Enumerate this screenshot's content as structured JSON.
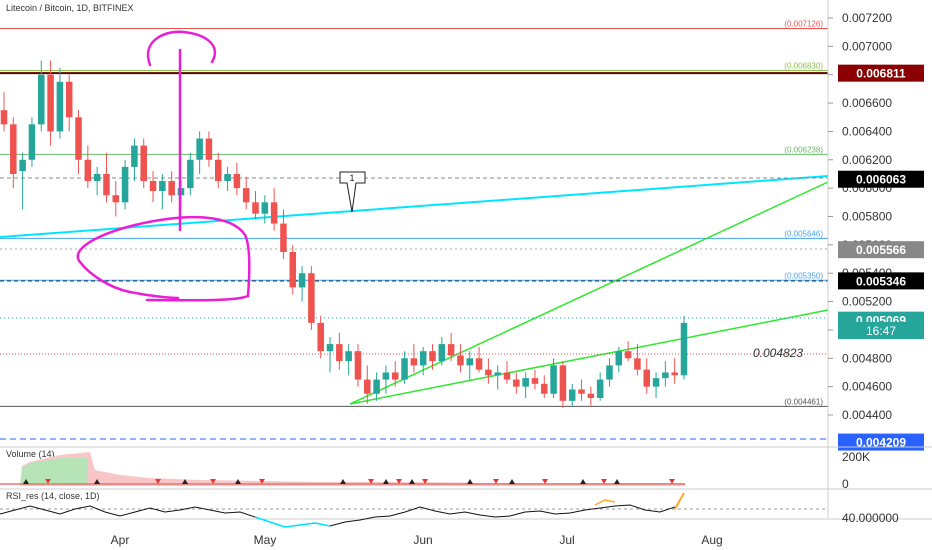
{
  "header": {
    "symbol_title": "Litecoin / Bitcoin, 1D, BITFINEX"
  },
  "chart_data": {
    "type": "candlestick",
    "title": "Litecoin / Bitcoin, 1D, BITFINEX",
    "x_ticks": [
      "Apr",
      "May",
      "Jun",
      "Jul",
      "Aug"
    ],
    "y_ticks": [
      "0.007200",
      "0.007000",
      "0.006800",
      "0.006600",
      "0.006400",
      "0.006200",
      "0.006000",
      "0.005800",
      "0.005600",
      "0.005400",
      "0.005200",
      "0.005000",
      "0.004800",
      "0.004600",
      "0.004400"
    ],
    "ylim": [
      0.00425,
      0.0073
    ],
    "grid": false,
    "horizontal_levels": [
      {
        "label": "0.007126",
        "value": 0.007126,
        "color": "#ef5350",
        "style": "solid"
      },
      {
        "label": "0.006830",
        "value": 0.00683,
        "color": "#8bc34a",
        "style": "solid"
      },
      {
        "label": "0.006238",
        "value": 0.006238,
        "color": "#66bb6a",
        "style": "solid"
      },
      {
        "label": "0.005646",
        "value": 0.005646,
        "color": "#42a5f5",
        "style": "solid"
      },
      {
        "label": "0.005350",
        "value": 0.00535,
        "color": "#42a5f5",
        "style": "solid"
      },
      {
        "label": "0.004461",
        "value": 0.004461,
        "color": "#555555",
        "style": "solid"
      }
    ],
    "price_badges": [
      {
        "label": "0.006811",
        "value": 0.006811,
        "bg": "#8b0000"
      },
      {
        "label": "0.006063",
        "value": 0.006063,
        "bg": "#000000"
      },
      {
        "label": "0.005566",
        "value": 0.005566,
        "bg": "#888888"
      },
      {
        "label": "0.005346",
        "value": 0.005346,
        "bg": "#000000"
      },
      {
        "label": "0.005069",
        "value": 0.005069,
        "bg": "#26a69a"
      },
      {
        "label": "0.004209",
        "value": 0.004209,
        "bg": "#2962ff"
      }
    ],
    "countdown_label": "16:47",
    "annotation_value": "0.004823",
    "callout_label": "1",
    "candles": [
      [
        0.00655,
        0.00668,
        0.0064,
        0.00645
      ],
      [
        0.00645,
        0.0065,
        0.006,
        0.0061
      ],
      [
        0.00612,
        0.00625,
        0.00585,
        0.0062
      ],
      [
        0.0062,
        0.0065,
        0.00615,
        0.00645
      ],
      [
        0.00645,
        0.0069,
        0.0064,
        0.0068
      ],
      [
        0.0068,
        0.0069,
        0.0063,
        0.0064
      ],
      [
        0.0064,
        0.00685,
        0.00635,
        0.00675
      ],
      [
        0.00675,
        0.0068,
        0.0064,
        0.0065
      ],
      [
        0.0065,
        0.00655,
        0.0061,
        0.0062
      ],
      [
        0.0062,
        0.0063,
        0.006,
        0.00605
      ],
      [
        0.00605,
        0.00615,
        0.00595,
        0.0061
      ],
      [
        0.0061,
        0.00625,
        0.0059,
        0.00595
      ],
      [
        0.00595,
        0.00605,
        0.0058,
        0.0059
      ],
      [
        0.0059,
        0.0062,
        0.00585,
        0.00615
      ],
      [
        0.00615,
        0.00635,
        0.00605,
        0.0063
      ],
      [
        0.0063,
        0.00635,
        0.006,
        0.00605
      ],
      [
        0.00605,
        0.00612,
        0.0059,
        0.00598
      ],
      [
        0.00598,
        0.0061,
        0.00585,
        0.00605
      ],
      [
        0.00605,
        0.00612,
        0.0059,
        0.00595
      ],
      [
        0.00595,
        0.00605,
        0.00585,
        0.006
      ],
      [
        0.006,
        0.00625,
        0.00595,
        0.0062
      ],
      [
        0.0062,
        0.0064,
        0.0061,
        0.00635
      ],
      [
        0.00635,
        0.0064,
        0.00615,
        0.0062
      ],
      [
        0.0062,
        0.00625,
        0.006,
        0.00605
      ],
      [
        0.00605,
        0.00615,
        0.00598,
        0.0061
      ],
      [
        0.0061,
        0.00618,
        0.00595,
        0.006
      ],
      [
        0.006,
        0.00608,
        0.00585,
        0.0059
      ],
      [
        0.0059,
        0.00598,
        0.00578,
        0.00582
      ],
      [
        0.00582,
        0.00595,
        0.00575,
        0.0059
      ],
      [
        0.0059,
        0.006,
        0.0057,
        0.00575
      ],
      [
        0.00575,
        0.00585,
        0.0055,
        0.00555
      ],
      [
        0.00555,
        0.0056,
        0.00525,
        0.0053
      ],
      [
        0.0053,
        0.00545,
        0.0052,
        0.0054
      ],
      [
        0.0054,
        0.00545,
        0.005,
        0.00505
      ],
      [
        0.00505,
        0.0051,
        0.0048,
        0.00485
      ],
      [
        0.00485,
        0.00495,
        0.0047,
        0.0049
      ],
      [
        0.0049,
        0.00498,
        0.00472,
        0.00478
      ],
      [
        0.00478,
        0.0049,
        0.00468,
        0.00485
      ],
      [
        0.00485,
        0.0049,
        0.0046,
        0.00465
      ],
      [
        0.00465,
        0.00475,
        0.00448,
        0.00455
      ],
      [
        0.00455,
        0.0047,
        0.0045,
        0.00465
      ],
      [
        0.00465,
        0.00475,
        0.00455,
        0.0047
      ],
      [
        0.0047,
        0.00478,
        0.0046,
        0.00465
      ],
      [
        0.00465,
        0.00485,
        0.00462,
        0.0048
      ],
      [
        0.0048,
        0.0049,
        0.0047,
        0.00475
      ],
      [
        0.00475,
        0.00488,
        0.00468,
        0.00485
      ],
      [
        0.00485,
        0.0049,
        0.00472,
        0.00478
      ],
      [
        0.00478,
        0.00495,
        0.00475,
        0.0049
      ],
      [
        0.0049,
        0.00498,
        0.00478,
        0.00482
      ],
      [
        0.00482,
        0.0049,
        0.0047,
        0.00475
      ],
      [
        0.00475,
        0.00485,
        0.00465,
        0.0048
      ],
      [
        0.0048,
        0.00488,
        0.0047,
        0.00472
      ],
      [
        0.00472,
        0.0048,
        0.00462,
        0.00468
      ],
      [
        0.00468,
        0.00475,
        0.00458,
        0.0047
      ],
      [
        0.0047,
        0.00478,
        0.00462,
        0.00465
      ],
      [
        0.00465,
        0.0047,
        0.00455,
        0.0046
      ],
      [
        0.0046,
        0.0047,
        0.00452,
        0.00466
      ],
      [
        0.00466,
        0.00472,
        0.00458,
        0.00462
      ],
      [
        0.00462,
        0.00468,
        0.00452,
        0.00455
      ],
      [
        0.00455,
        0.0048,
        0.00452,
        0.00475
      ],
      [
        0.00475,
        0.00478,
        0.00445,
        0.0045
      ],
      [
        0.0045,
        0.00462,
        0.00446,
        0.00458
      ],
      [
        0.00458,
        0.00465,
        0.0045,
        0.00455
      ],
      [
        0.00455,
        0.0046,
        0.00446,
        0.00452
      ],
      [
        0.00452,
        0.0047,
        0.0045,
        0.00465
      ],
      [
        0.00465,
        0.0048,
        0.0046,
        0.00475
      ],
      [
        0.00475,
        0.00488,
        0.0047,
        0.00485
      ],
      [
        0.00485,
        0.00492,
        0.00478,
        0.0048
      ],
      [
        0.0048,
        0.0049,
        0.00468,
        0.00472
      ],
      [
        0.00472,
        0.0048,
        0.00455,
        0.0046
      ],
      [
        0.0046,
        0.0047,
        0.00452,
        0.00466
      ],
      [
        0.00466,
        0.00478,
        0.0046,
        0.0047
      ],
      [
        0.0047,
        0.0048,
        0.00462,
        0.00468
      ],
      [
        0.00468,
        0.0051,
        0.00465,
        0.00505
      ]
    ]
  },
  "volume_panel": {
    "label": "Volume (14)",
    "y_ticks": [
      "200K",
      "0"
    ]
  },
  "rsi_panel": {
    "label": "RSI_res (14, close, 1D)",
    "y_ticks": [
      "40.000000"
    ]
  },
  "colors": {
    "up": "#26a69a",
    "down": "#ef5350",
    "magenta": "#e91ed6",
    "cyan": "#00e5ff",
    "green_line": "#2ee82e"
  }
}
